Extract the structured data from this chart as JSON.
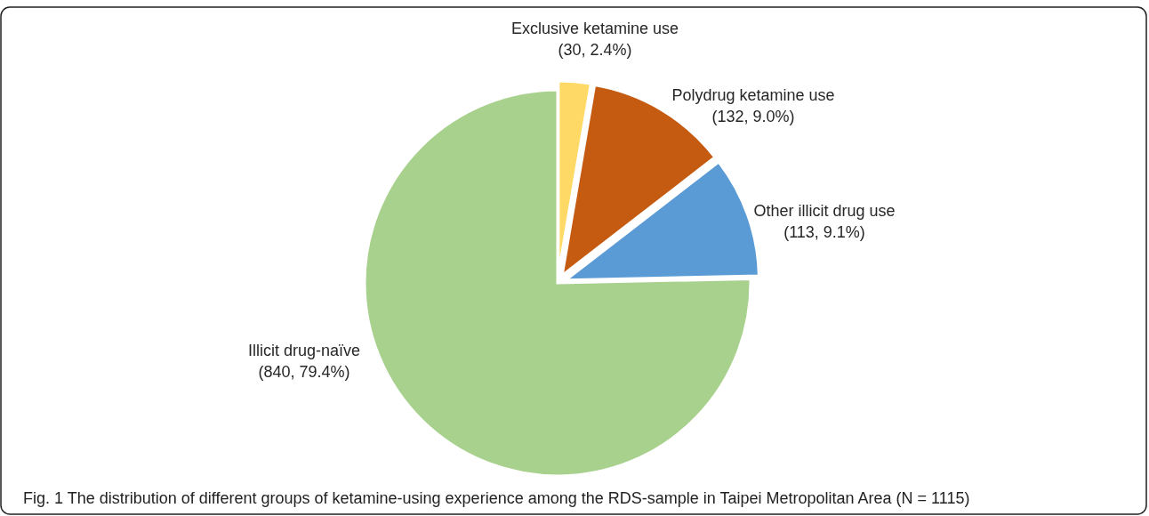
{
  "chart_data": {
    "type": "pie",
    "categories": [
      "Exclusive ketamine use",
      "Polydrug ketamine use",
      "Other illicit drug use",
      "Illicit drug-naïve"
    ],
    "values": [
      30,
      132,
      113,
      840
    ],
    "value_labels": [
      "(30, 2.4%)",
      "(132, 9.0%)",
      "(113, 9.1%)",
      "(840, 79.4%)"
    ],
    "colors": [
      "#ffd966",
      "#c55a11",
      "#5b9bd5",
      "#a9d18e"
    ],
    "annotations": [
      "Fig. 1 The distribution of different groups of ketamine-using experience among the RDS-sample in Taipei Metropolitan Area (N = 1115)"
    ]
  }
}
